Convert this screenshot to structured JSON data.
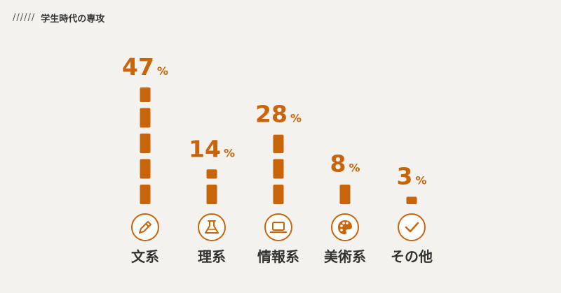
{
  "header": {
    "decoration": "//////",
    "title": "学生時代の専攻"
  },
  "colors": {
    "accent": "#c8650a",
    "text": "#333333",
    "background": "#f4f2ef"
  },
  "chart_data": {
    "type": "bar",
    "title": "学生時代の専攻",
    "unit": "%",
    "categories": [
      "文系",
      "理系",
      "情報系",
      "美術系",
      "その他"
    ],
    "values": [
      47,
      14,
      28,
      8,
      3
    ],
    "icons": [
      "pencil-icon",
      "flask-icon",
      "laptop-icon",
      "palette-icon",
      "checkmark-icon"
    ],
    "grid": false,
    "legend": "none"
  }
}
